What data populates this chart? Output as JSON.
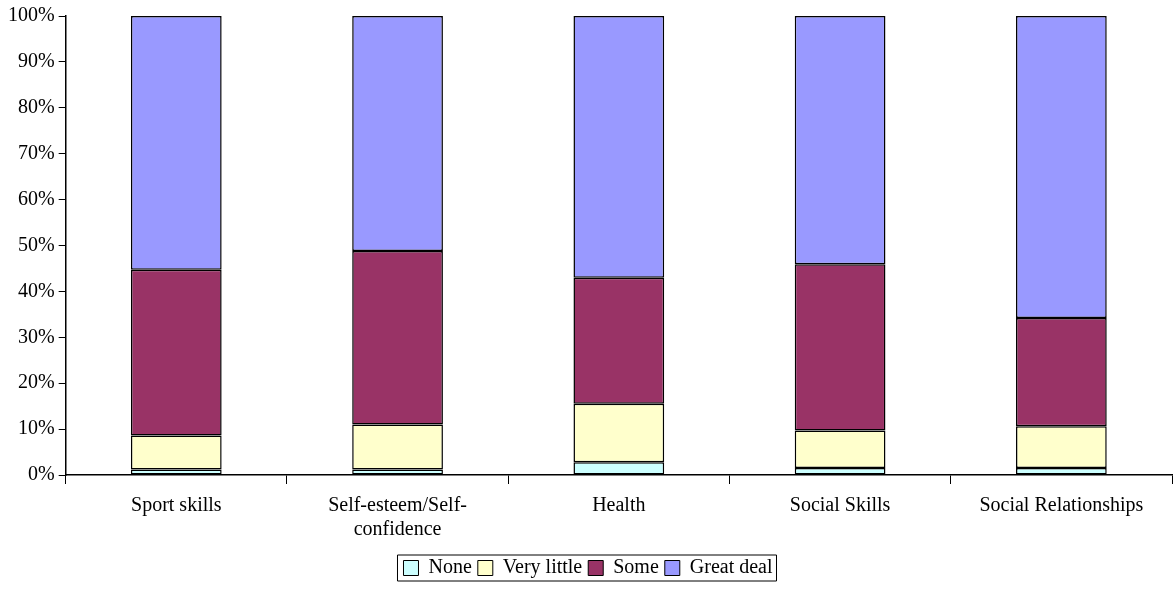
{
  "chart_data": {
    "type": "bar",
    "stacked": true,
    "categories": [
      "Sport skills",
      "Self-esteem/Self-confidence",
      "Health",
      "Social Skills",
      "Social Relationships"
    ],
    "series": [
      {
        "name": "None",
        "color": "#ccffff",
        "values": [
          1.2,
          1.2,
          2.8,
          1.5,
          1.5
        ]
      },
      {
        "name": "Very little",
        "color": "#ffffcc",
        "values": [
          7.4,
          9.8,
          12.7,
          8.2,
          9.1
        ]
      },
      {
        "name": "Some",
        "color": "#993366",
        "values": [
          36.1,
          37.8,
          27.5,
          36.2,
          23.6
        ]
      },
      {
        "name": "Great deal",
        "color": "#9999ff",
        "values": [
          55.3,
          51.2,
          57.0,
          54.1,
          65.8
        ]
      }
    ],
    "ylim": [
      0,
      100
    ],
    "yticks": [
      {
        "value": 0,
        "label": "0%"
      },
      {
        "value": 10,
        "label": "10%"
      },
      {
        "value": 20,
        "label": "20%"
      },
      {
        "value": 30,
        "label": "30%"
      },
      {
        "value": 40,
        "label": "40%"
      },
      {
        "value": 50,
        "label": "50%"
      },
      {
        "value": 60,
        "label": "60%"
      },
      {
        "value": 70,
        "label": "70%"
      },
      {
        "value": 80,
        "label": "80%"
      },
      {
        "value": 90,
        "label": "90%"
      },
      {
        "value": 100,
        "label": "100%"
      }
    ],
    "legend": "bottom"
  }
}
